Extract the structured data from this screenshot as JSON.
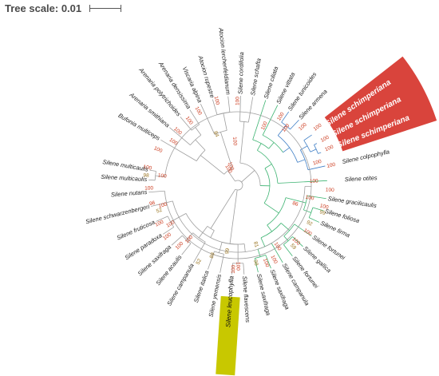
{
  "scale": {
    "label": "Tree scale: 0.01"
  },
  "colors": {
    "branch": "#9e9e9e",
    "clade_green": "#3cb371",
    "clade_blue": "#3f7fc6",
    "highlight_red": "#d9443c",
    "highlight_yellow": "#c8c800",
    "bootstrap_red": "#cc3b1e",
    "bootstrap_brown": "#9a7420"
  },
  "taxa": [
    {
      "name": "Silene multicaulis",
      "angle": -170.3,
      "rlab": 114
    },
    {
      "name": "Silene multicaulis",
      "angle": -176.6,
      "rlab": 114
    },
    {
      "name": "Silene nutans",
      "angle": 175.5,
      "rlab": 114
    },
    {
      "name": "Silene schwarzenbergeri",
      "angle": 166.3,
      "rlab": 114
    },
    {
      "name": "Silene fruticosa",
      "angle": 156.1,
      "rlab": 114
    },
    {
      "name": "Silene paradoxa",
      "angle": 146.8,
      "rlab": 114
    },
    {
      "name": "Silene saxifraga",
      "angle": 137.8,
      "rlab": 114
    },
    {
      "name": "Silene acaulis",
      "angle": 128.9,
      "rlab": 114
    },
    {
      "name": "Silene campanula",
      "angle": 119.8,
      "rlab": 114
    },
    {
      "name": "Silene italica",
      "angle": 109.6,
      "rlab": 114
    },
    {
      "name": "Silene yemensis",
      "angle": 101.5,
      "rlab": 114
    },
    {
      "name": "Silene leucophylla",
      "angle": 93.8,
      "rlab": 114
    },
    {
      "name": "Silene flavescens",
      "angle": 86.0,
      "rlab": 114
    },
    {
      "name": "Silene saxifraga",
      "angle": 76.9,
      "rlab": 114
    },
    {
      "name": "Silene saxifraga",
      "angle": 68.3,
      "rlab": 114
    },
    {
      "name": "Silene campanula",
      "angle": 59.9,
      "rlab": 114
    },
    {
      "name": "Silene fortunei",
      "angle": 52.4,
      "rlab": 114
    },
    {
      "name": "Silene gallica",
      "angle": 43.3,
      "rlab": 114
    },
    {
      "name": "Silene fortunei",
      "angle": 34.6,
      "rlab": 114
    },
    {
      "name": "Silene firma",
      "angle": 24.5,
      "rlab": 114
    },
    {
      "name": "Silene foliosa",
      "angle": 16.6,
      "rlab": 114
    },
    {
      "name": "Silene gracilicaulis",
      "angle": 8.6,
      "rlab": 114
    },
    {
      "name": "Silene otites",
      "angle": -2.9,
      "rlab": 134
    },
    {
      "name": "Silene colpophylla",
      "angle": -12.4,
      "rlab": 134
    },
    {
      "name": "Silene schimperiana",
      "angle": -21.5,
      "rlab": 134
    },
    {
      "name": "Silene schimperiana",
      "angle": -27.9,
      "rlab": 134
    },
    {
      "name": "Silene schimperiana",
      "angle": -34.2,
      "rlab": 134
    },
    {
      "name": "Silene armena",
      "angle": -46.9,
      "rlab": 114
    },
    {
      "name": "Silene tunicoides",
      "angle": -55.3,
      "rlab": 114
    },
    {
      "name": "Silene vittata",
      "angle": -63.6,
      "rlab": 114
    },
    {
      "name": "Silene ciliata",
      "angle": -71.9,
      "rlab": 114
    },
    {
      "name": "Silene schafta",
      "angle": -80.4,
      "rlab": 114
    },
    {
      "name": "Silene cordifolia",
      "angle": -88.2,
      "rlab": 114
    },
    {
      "name": "Atocion lerchenfeldianum",
      "angle": -96.3,
      "rlab": 114
    },
    {
      "name": "Atocion rupestre",
      "angle": -106.4,
      "rlab": 114
    },
    {
      "name": "Viscaria alpina",
      "angle": -114.6,
      "rlab": 114
    },
    {
      "name": "Arenaria densissima",
      "angle": -122.5,
      "rlab": 114
    },
    {
      "name": "Arenaria polytrichoides",
      "angle": -130.1,
      "rlab": 114
    },
    {
      "name": "Arenaria smithiana",
      "angle": -139.8,
      "rlab": 114
    },
    {
      "name": "Bufonia multiceps",
      "angle": -149.6,
      "rlab": 114
    }
  ],
  "bootstraps": [
    {
      "v": "100",
      "angle": -169,
      "r": 110
    },
    {
      "v": "98",
      "angle": -174,
      "r": 112,
      "c": "brown"
    },
    {
      "v": "100",
      "angle": -173,
      "r": 90
    },
    {
      "v": "100",
      "angle": 178,
      "r": 106
    },
    {
      "v": "96",
      "angle": 168,
      "r": 106
    },
    {
      "v": "100",
      "angle": 165,
      "r": 92
    },
    {
      "v": "52",
      "angle": 162,
      "r": 100,
      "c": "brown"
    },
    {
      "v": "100",
      "angle": 154,
      "r": 104
    },
    {
      "v": "100",
      "angle": 150,
      "r": 92
    },
    {
      "v": "100",
      "angle": 144,
      "r": 104
    },
    {
      "v": "100",
      "angle": 134,
      "r": 100
    },
    {
      "v": "100",
      "angle": 132,
      "r": 86
    },
    {
      "v": "52",
      "angle": 117,
      "r": 104,
      "c": "brown"
    },
    {
      "v": "89",
      "angle": 110,
      "r": 90,
      "c": "brown"
    },
    {
      "v": "99",
      "angle": 99,
      "r": 80,
      "c": "brown"
    },
    {
      "v": "100",
      "angle": 93,
      "r": 100
    },
    {
      "v": "100",
      "angle": 90,
      "r": 96
    },
    {
      "v": "98",
      "angle": 77,
      "r": 96,
      "c": "brown"
    },
    {
      "v": "100",
      "angle": 70,
      "r": 98
    },
    {
      "v": "100",
      "angle": 64,
      "r": 98
    },
    {
      "v": "100",
      "angle": 57,
      "r": 86
    },
    {
      "v": "59",
      "angle": 48,
      "r": 100,
      "c": "brown"
    },
    {
      "v": "81",
      "angle": 73,
      "r": 74,
      "c": "brown"
    },
    {
      "v": "92",
      "angle": 28,
      "r": 98,
      "c": "brown"
    },
    {
      "v": "100",
      "angle": 34,
      "r": 100
    },
    {
      "v": "100",
      "angle": 44,
      "r": 96
    },
    {
      "v": "100",
      "angle": 14,
      "r": 106
    },
    {
      "v": "99",
      "angle": 18,
      "r": 108,
      "c": "brown"
    },
    {
      "v": "100",
      "angle": 10,
      "r": 86
    },
    {
      "v": "100",
      "angle": 3,
      "r": 110
    },
    {
      "v": "86",
      "angle": 18,
      "r": 72
    },
    {
      "v": "100",
      "angle": -3,
      "r": 90
    },
    {
      "v": "100",
      "angle": -12,
      "r": 114
    },
    {
      "v": "100",
      "angle": -16,
      "r": 98
    },
    {
      "v": "100",
      "angle": -22,
      "r": 118
    },
    {
      "v": "100",
      "angle": -28,
      "r": 118
    },
    {
      "v": "100",
      "angle": -36,
      "r": 118
    },
    {
      "v": "100",
      "angle": -42,
      "r": 104
    },
    {
      "v": "100",
      "angle": -50,
      "r": 88
    },
    {
      "v": "100",
      "angle": -58,
      "r": 96
    },
    {
      "v": "100",
      "angle": -66,
      "r": 76
    },
    {
      "v": "100",
      "angle": -90,
      "r": 100
    },
    {
      "v": "100",
      "angle": -94,
      "r": 50
    },
    {
      "v": "100",
      "angle": -104,
      "r": 104
    },
    {
      "v": "84",
      "angle": -113,
      "r": 66,
      "c": "brown"
    },
    {
      "v": "100",
      "angle": -118,
      "r": 100
    },
    {
      "v": "100",
      "angle": -127,
      "r": 96
    },
    {
      "v": "100",
      "angle": -138,
      "r": 96
    },
    {
      "v": "100",
      "angle": -146,
      "r": 92
    },
    {
      "v": "100",
      "angle": -156,
      "r": 104
    },
    {
      "v": "100",
      "angle": -110,
      "r": 20
    },
    {
      "v": "100",
      "angle": -120,
      "r": 18
    }
  ]
}
